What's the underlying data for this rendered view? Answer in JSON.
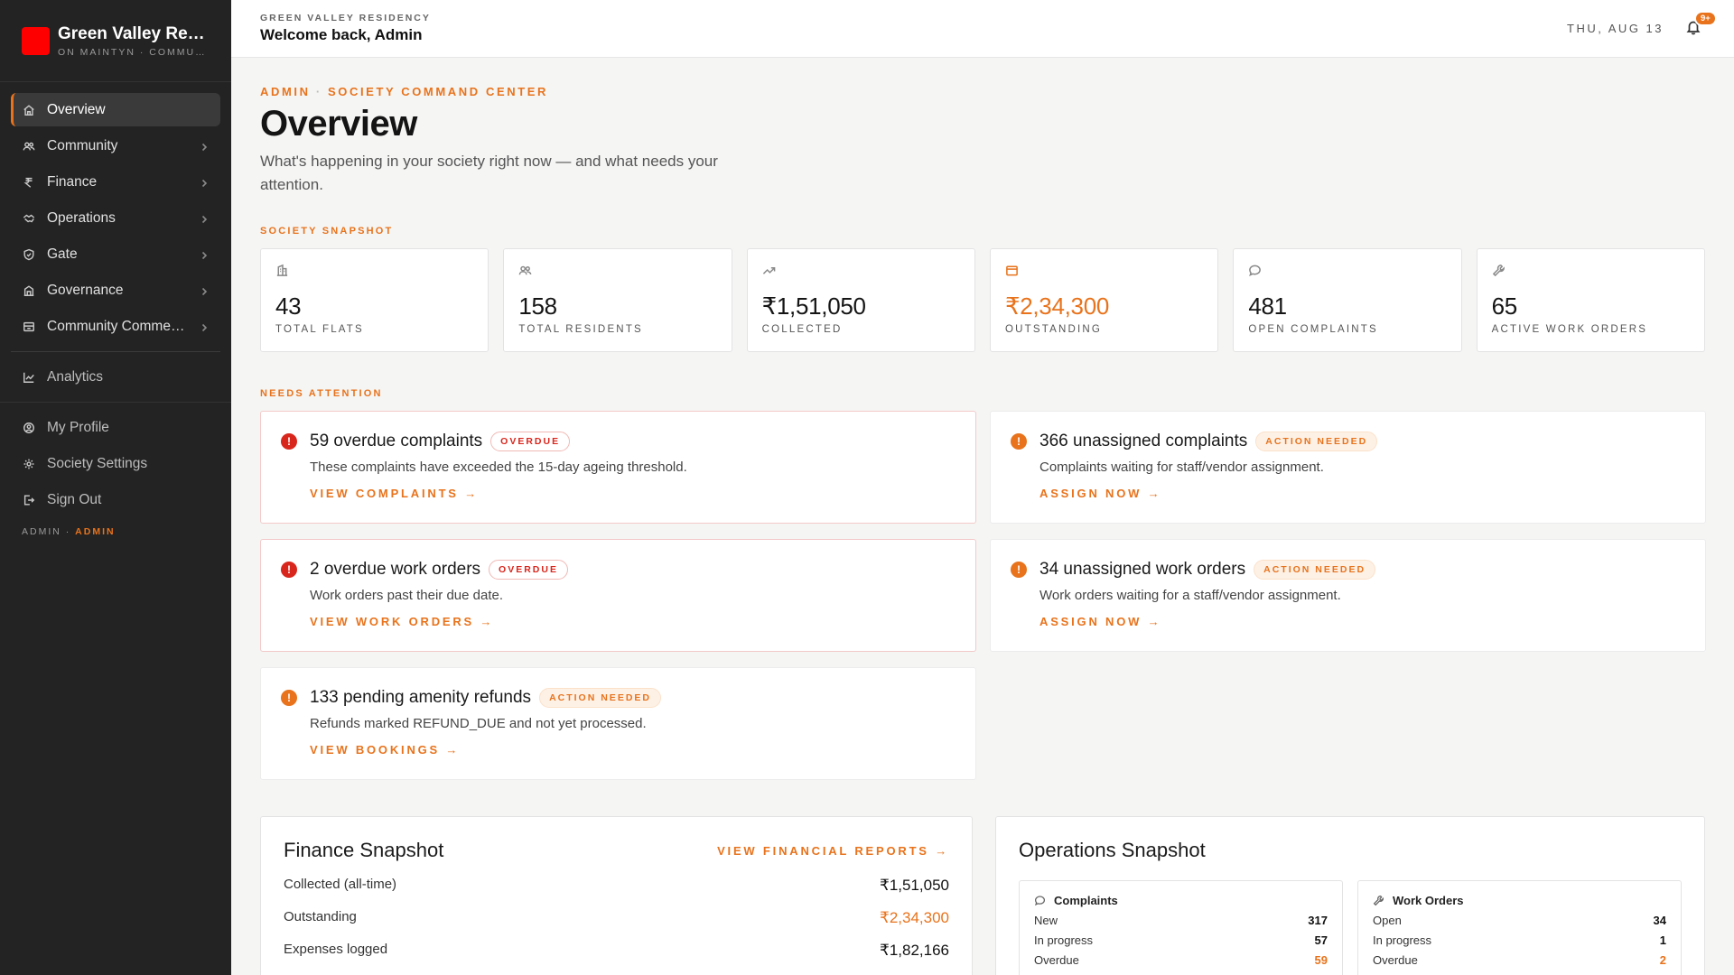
{
  "brand": {
    "name": "Green Valley Res…",
    "sub": "ON MAINTYN · COMMUN…"
  },
  "sidebar": {
    "items": [
      {
        "label": "Overview",
        "icon": "home-icon"
      },
      {
        "label": "Community",
        "icon": "users-icon"
      },
      {
        "label": "Finance",
        "icon": "rupee-icon"
      },
      {
        "label": "Operations",
        "icon": "handshake-icon"
      },
      {
        "label": "Gate",
        "icon": "shield-icon"
      },
      {
        "label": "Governance",
        "icon": "building-icon"
      },
      {
        "label": "Community Comme…",
        "icon": "store-icon"
      }
    ],
    "analytics": "Analytics",
    "footer_items": [
      {
        "label": "My Profile",
        "icon": "profile-icon"
      },
      {
        "label": "Society Settings",
        "icon": "gear-icon"
      },
      {
        "label": "Sign Out",
        "icon": "logout-icon"
      }
    ],
    "role_prefix": "ADMIN ·",
    "role": "ADMIN"
  },
  "header": {
    "kicker": "GREEN VALLEY RESIDENCY",
    "title": "Welcome back, Admin",
    "date": "THU, AUG 13",
    "notif_count": "9+"
  },
  "main": {
    "crumb_a": "ADMIN",
    "crumb_sep": "·",
    "crumb_b": "SOCIETY COMMAND CENTER",
    "title": "Overview",
    "subtitle": "What's happening in your society right now — and what needs your attention.",
    "snapshot_label": "SOCIETY SNAPSHOT",
    "attention_label": "NEEDS ATTENTION"
  },
  "stats": [
    {
      "value": "43",
      "label": "TOTAL FLATS",
      "icon": "building-icon"
    },
    {
      "value": "158",
      "label": "TOTAL RESIDENTS",
      "icon": "users-icon"
    },
    {
      "value": "₹1,51,050",
      "label": "COLLECTED",
      "icon": "trending-up-icon"
    },
    {
      "value": "₹2,34,300",
      "label": "OUTSTANDING",
      "icon": "wallet-icon"
    },
    {
      "value": "481",
      "label": "OPEN COMPLAINTS",
      "icon": "chat-icon"
    },
    {
      "value": "65",
      "label": "ACTIVE WORK ORDERS",
      "icon": "wrench-icon"
    }
  ],
  "alerts": [
    {
      "title": "59 overdue complaints",
      "badge": "OVERDUE",
      "desc": "These complaints have exceeded the 15-day ageing threshold.",
      "link": "VIEW COMPLAINTS →"
    },
    {
      "title": "366 unassigned complaints",
      "badge": "ACTION NEEDED",
      "desc": "Complaints waiting for staff/vendor assignment.",
      "link": "ASSIGN NOW →"
    },
    {
      "title": "2 overdue work orders",
      "badge": "OVERDUE",
      "desc": "Work orders past their due date.",
      "link": "VIEW WORK ORDERS →"
    },
    {
      "title": "34 unassigned work orders",
      "badge": "ACTION NEEDED",
      "desc": "Work orders waiting for a staff/vendor assignment.",
      "link": "ASSIGN NOW →"
    },
    {
      "title": "133 pending amenity refunds",
      "badge": "ACTION NEEDED",
      "desc": "Refunds marked REFUND_DUE and not yet processed.",
      "link": "VIEW BOOKINGS →"
    }
  ],
  "finance": {
    "title": "Finance Snapshot",
    "link": "VIEW FINANCIAL REPORTS →",
    "rows": [
      {
        "label": "Collected (all-time)",
        "value": "₹1,51,050"
      },
      {
        "label": "Outstanding",
        "value": "₹2,34,300"
      },
      {
        "label": "Expenses logged",
        "value": "₹1,82,166"
      }
    ]
  },
  "operations": {
    "title": "Operations Snapshot",
    "complaints": {
      "title": "Complaints",
      "rows": [
        {
          "label": "New",
          "value": "317"
        },
        {
          "label": "In progress",
          "value": "57"
        },
        {
          "label": "Overdue",
          "value": "59"
        }
      ]
    },
    "work_orders": {
      "title": "Work Orders",
      "rows": [
        {
          "label": "Open",
          "value": "34"
        },
        {
          "label": "In progress",
          "value": "1"
        },
        {
          "label": "Overdue",
          "value": "2"
        }
      ]
    }
  },
  "colors": {
    "accent": "#e8731c",
    "danger": "#d9261c",
    "sidebar_bg": "#232323",
    "brand_logo": "#ff0000"
  }
}
